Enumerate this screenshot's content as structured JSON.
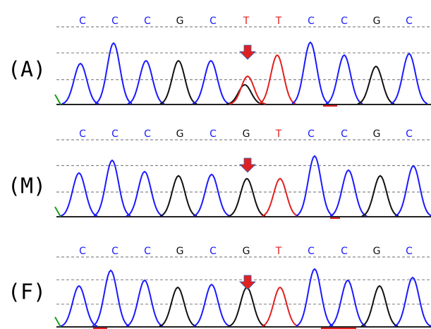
{
  "panels": [
    {
      "label": "(A)",
      "bases": [
        "C",
        "C",
        "C",
        "G",
        "C",
        "T",
        "T",
        "C",
        "C",
        "G",
        "C"
      ]
    },
    {
      "label": "(M)",
      "bases": [
        "C",
        "C",
        "C",
        "G",
        "C",
        "G",
        "T",
        "C",
        "C",
        "G",
        "C"
      ]
    },
    {
      "label": "(F)",
      "bases": [
        "C",
        "C",
        "C",
        "G",
        "C",
        "G",
        "T",
        "C",
        "C",
        "G",
        "C"
      ]
    }
  ]
}
